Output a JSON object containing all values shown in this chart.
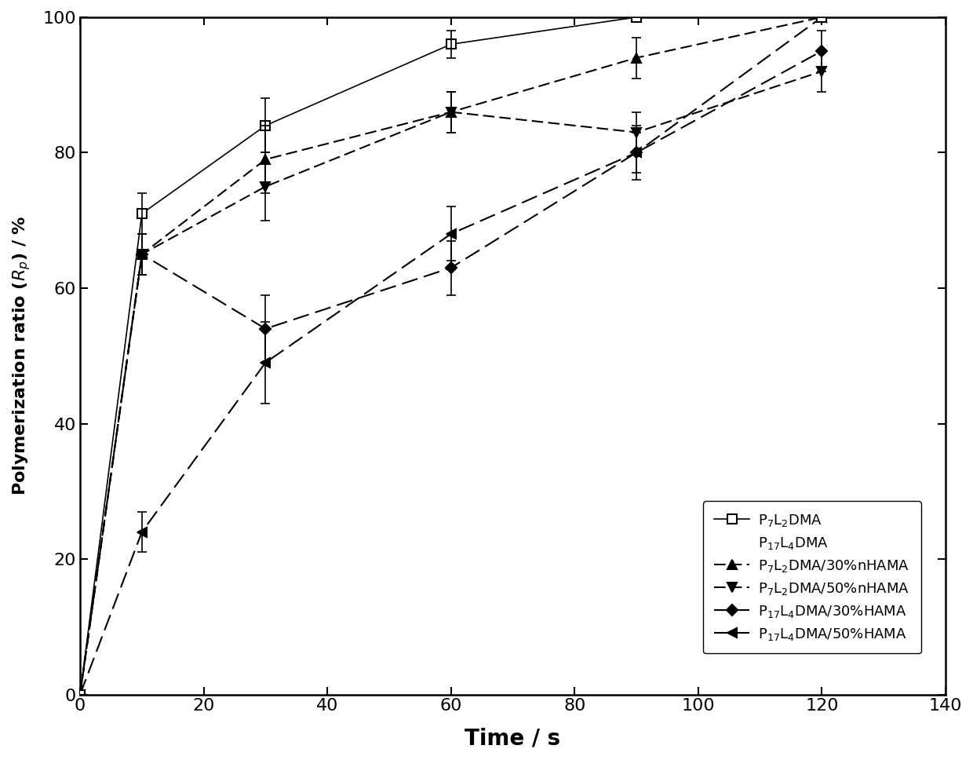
{
  "series": [
    {
      "label": "P$_7$L$_2$DMA",
      "x": [
        0,
        10,
        30,
        60,
        90,
        120
      ],
      "y": [
        0,
        71,
        84,
        96,
        100,
        100
      ],
      "yerr": [
        0,
        3,
        4,
        2,
        0,
        0
      ],
      "marker": "s",
      "linestyle": "solid",
      "markerfacecolor": "white",
      "markersize": 8,
      "linewidth": 1.2,
      "dashes": []
    },
    {
      "label": "P$_7$L$_2$DMA/30%nHAMA",
      "x": [
        0,
        10,
        30,
        60,
        90,
        120
      ],
      "y": [
        0,
        65,
        79,
        86,
        94,
        100
      ],
      "yerr": [
        0,
        3,
        5,
        3,
        3,
        0
      ],
      "marker": "^",
      "linestyle": "dashed",
      "markerfacecolor": "black",
      "markersize": 8,
      "linewidth": 1.5,
      "dashes": [
        7,
        3
      ]
    },
    {
      "label": "P$_7$L$_2$DMA/50%nHAMA",
      "x": [
        0,
        10,
        30,
        60,
        90,
        120
      ],
      "y": [
        0,
        65,
        75,
        86,
        83,
        92
      ],
      "yerr": [
        0,
        3,
        5,
        3,
        3,
        3
      ],
      "marker": "v",
      "linestyle": "dashed",
      "markerfacecolor": "black",
      "markersize": 8,
      "linewidth": 1.5,
      "dashes": [
        7,
        3
      ]
    },
    {
      "label": "P$_{17}$L$_4$DMA/30%HAMA",
      "x": [
        0,
        10,
        30,
        60,
        90,
        120
      ],
      "y": [
        0,
        65,
        54,
        63,
        80,
        95
      ],
      "yerr": [
        0,
        3,
        5,
        4,
        3,
        3
      ],
      "marker": "D",
      "linestyle": "dashed",
      "markerfacecolor": "black",
      "markersize": 7,
      "linewidth": 1.5,
      "dashes": [
        10,
        4
      ]
    },
    {
      "label": "P$_{17}$L$_4$DMA/50%HAMA",
      "x": [
        0,
        10,
        30,
        60,
        90,
        120
      ],
      "y": [
        0,
        24,
        49,
        68,
        80,
        100
      ],
      "yerr": [
        0,
        3,
        6,
        4,
        4,
        0
      ],
      "marker": "<",
      "linestyle": "dashed",
      "markerfacecolor": "black",
      "markersize": 8,
      "linewidth": 1.5,
      "dashes": [
        10,
        4
      ]
    }
  ],
  "xlabel": "Time / s",
  "ylabel": "Polymerization ratio ($R_p$) / %",
  "xlim": [
    0,
    140
  ],
  "ylim": [
    0,
    100
  ],
  "xticks": [
    0,
    20,
    40,
    60,
    80,
    100,
    120,
    140
  ],
  "yticks": [
    0,
    20,
    40,
    60,
    80,
    100
  ],
  "figure_size": [
    12.4,
    9.68
  ],
  "dpi": 100,
  "color": "#000000",
  "legend_text_only": "P$_{17}$L$_4$DMA"
}
